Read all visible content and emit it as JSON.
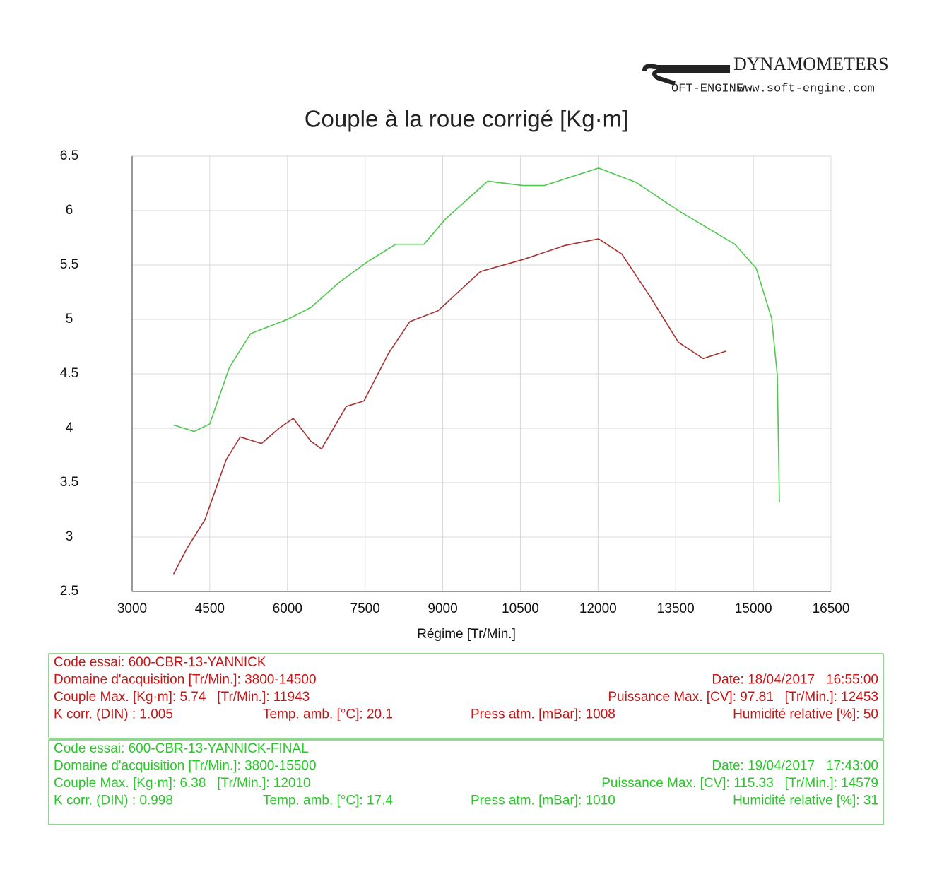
{
  "brand": {
    "name": "DYNAMOMETERS",
    "logo": "OFT-ENGINE",
    "url": "www.soft-engine.com"
  },
  "chart_data": {
    "type": "line",
    "title": "Couple à la roue corrigé [Kg·m]",
    "x_label": "Régime [Tr/Min.]",
    "xlim": [
      3000,
      16500
    ],
    "xticks": [
      3000,
      4500,
      6000,
      7500,
      9000,
      10500,
      12000,
      13500,
      15000,
      16500
    ],
    "ylim": [
      2.5,
      6.5
    ],
    "yticks": [
      2.5,
      3,
      3.5,
      4,
      4.5,
      5,
      5.5,
      6,
      6.5
    ],
    "grid": true,
    "series": [
      {
        "color": "#a83232",
        "x": [
          3800,
          4065,
          4406,
          4815,
          5088,
          5498,
          5839,
          6112,
          6453,
          6658,
          7136,
          7477,
          7955,
          8365,
          8911,
          9730,
          10549,
          11368,
          12010,
          12460,
          13006,
          13552,
          14030,
          14480
        ],
        "values": [
          2.66,
          2.9,
          3.16,
          3.71,
          3.92,
          3.86,
          4.0,
          4.09,
          3.88,
          3.81,
          4.2,
          4.25,
          4.69,
          4.98,
          5.08,
          5.44,
          5.55,
          5.68,
          5.74,
          5.6,
          5.21,
          4.79,
          4.64,
          4.71
        ]
      },
      {
        "color": "#4ec84e",
        "x": [
          3800,
          4200,
          4500,
          4880,
          5290,
          6000,
          6453,
          7000,
          7545,
          8092,
          8638,
          9047,
          9867,
          10549,
          10959,
          12010,
          12734,
          13552,
          14644,
          15054,
          15354,
          15463,
          15504
        ],
        "values": [
          4.03,
          3.97,
          4.04,
          4.56,
          4.87,
          5.0,
          5.11,
          5.34,
          5.53,
          5.69,
          5.69,
          5.92,
          6.27,
          6.23,
          6.23,
          6.39,
          6.26,
          6.0,
          5.69,
          5.47,
          5.01,
          4.49,
          3.32
        ]
      }
    ]
  },
  "panels": [
    {
      "color": "#c81414",
      "rows": [
        [
          "Code essai: 600-CBR-13-YANNICK"
        ],
        [
          "Domaine d'acquisition [Tr/Min.]: 3800-14500",
          "Date: 18/04/2017   16:55:00"
        ],
        [
          "Couple Max. [Kg·m]: 5.74   [Tr/Min.]: 11943",
          "Puissance Max. [CV]: 97.81   [Tr/Min.]: 12453"
        ],
        [
          "K corr. (DIN) : 1.005",
          "Temp. amb. [°C]: 20.1",
          "Press atm. [mBar]: 1008",
          "Humidité relative [%]: 50"
        ]
      ]
    },
    {
      "color": "#28c828",
      "rows": [
        [
          "Code essai: 600-CBR-13-YANNICK-FINAL"
        ],
        [
          "Domaine d'acquisition [Tr/Min.]: 3800-15500",
          "Date: 19/04/2017   17:43:00"
        ],
        [
          "Couple Max. [Kg·m]: 6.38   [Tr/Min.]: 12010",
          "Puissance Max. [CV]: 115.33   [Tr/Min.]: 14579"
        ],
        [
          "K corr. (DIN) : 0.998",
          "Temp. amb. [°C]: 17.4",
          "Press atm. [mBar]: 1010",
          "Humidité relative [%]: 31"
        ]
      ]
    }
  ]
}
